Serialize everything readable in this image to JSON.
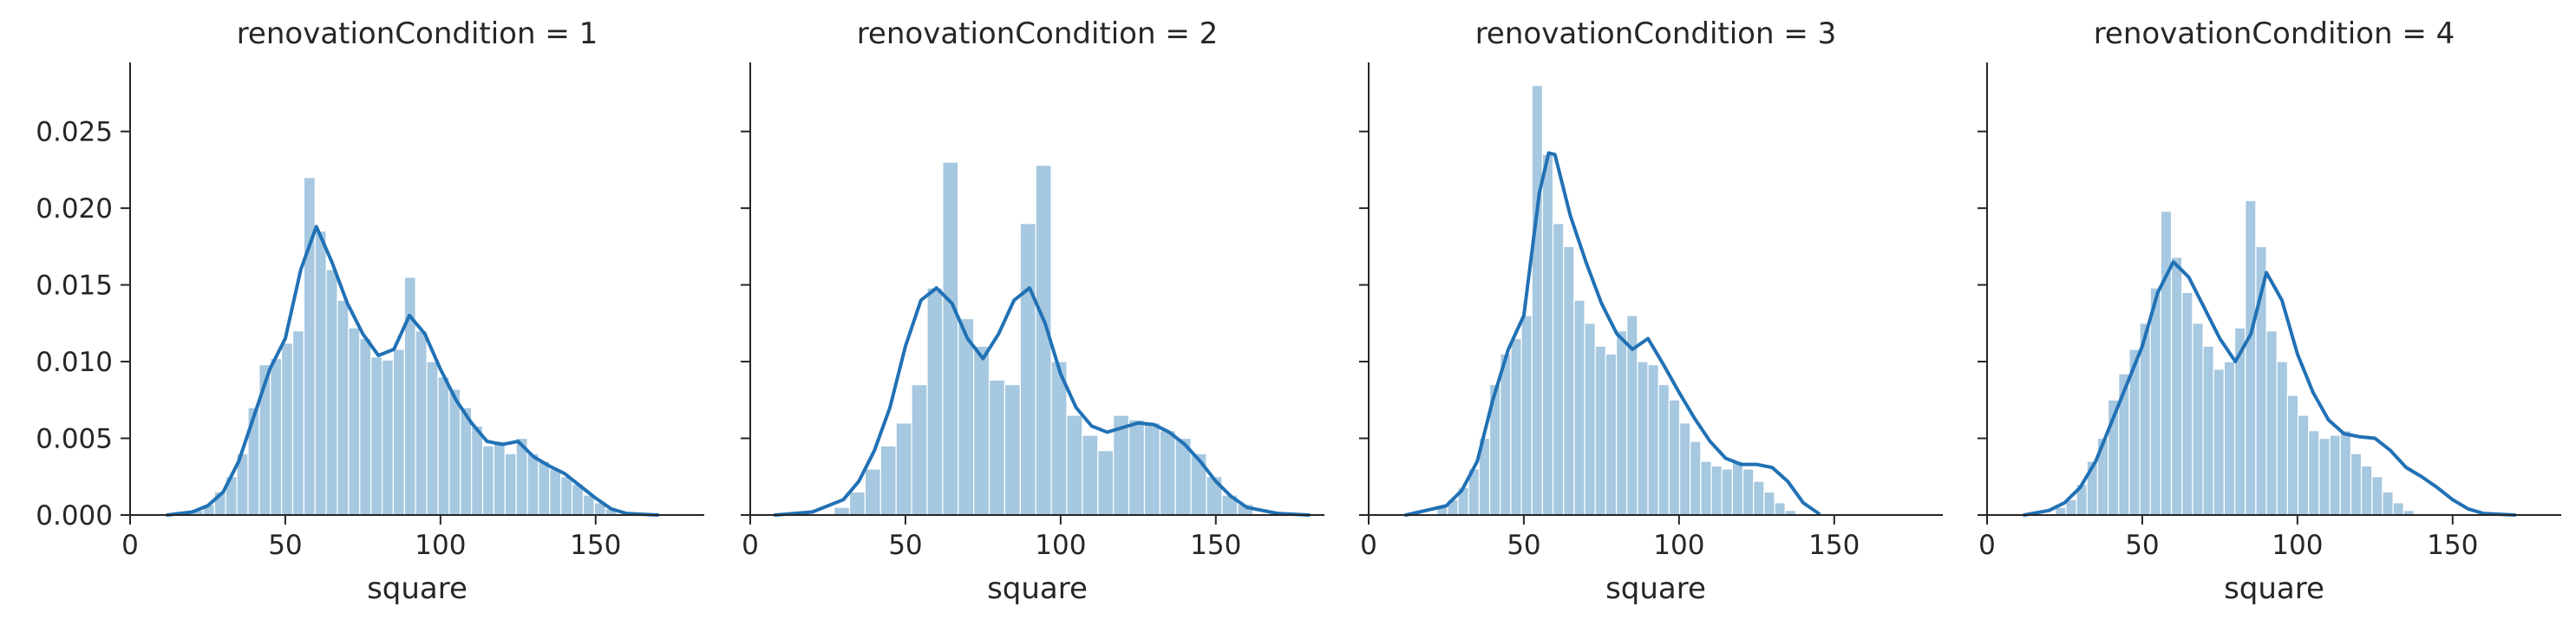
{
  "chart_data": [
    {
      "type": "histogram",
      "title": "renovationCondition = 1",
      "xlabel": "square",
      "ylabel": "",
      "xlim": [
        0,
        185
      ],
      "ylim": [
        0,
        0.0295
      ],
      "x_ticks": [
        0,
        50,
        100,
        150
      ],
      "y_ticks": [
        0.0,
        0.005,
        0.01,
        0.015,
        0.02,
        0.025
      ],
      "y_tick_labels": [
        "0.000",
        "0.005",
        "0.010",
        "0.015",
        "0.020",
        "0.025"
      ],
      "y_tick_labels_visible": true,
      "hist": {
        "bin_start": 20,
        "bin_width": 3.6,
        "values": [
          0.0003,
          0.0007,
          0.0015,
          0.0025,
          0.004,
          0.007,
          0.0098,
          0.0102,
          0.0112,
          0.012,
          0.022,
          0.0185,
          0.016,
          0.014,
          0.0122,
          0.0115,
          0.0103,
          0.0101,
          0.0108,
          0.0155,
          0.012,
          0.01,
          0.009,
          0.0082,
          0.007,
          0.0058,
          0.0045,
          0.0048,
          0.004,
          0.005,
          0.004,
          0.0035,
          0.003,
          0.0025,
          0.002,
          0.0013,
          0.0008,
          0.0004
        ]
      },
      "kde": {
        "x": [
          12,
          20,
          25,
          30,
          35,
          40,
          45,
          50,
          55,
          60,
          65,
          70,
          75,
          80,
          85,
          90,
          95,
          100,
          105,
          110,
          115,
          120,
          125,
          130,
          135,
          140,
          145,
          150,
          155,
          160,
          170
        ],
        "y": [
          0.0,
          0.0002,
          0.0006,
          0.0015,
          0.0035,
          0.0065,
          0.0095,
          0.0115,
          0.016,
          0.0188,
          0.0165,
          0.0138,
          0.0118,
          0.0104,
          0.0108,
          0.013,
          0.0118,
          0.0095,
          0.0075,
          0.006,
          0.0048,
          0.0046,
          0.0048,
          0.0038,
          0.0032,
          0.0027,
          0.0019,
          0.0011,
          0.0004,
          0.0001,
          0.0
        ]
      }
    },
    {
      "type": "histogram",
      "title": "renovationCondition = 2",
      "xlabel": "square",
      "ylabel": "",
      "xlim": [
        0,
        185
      ],
      "ylim": [
        0,
        0.0295
      ],
      "x_ticks": [
        0,
        50,
        100,
        150
      ],
      "y_ticks": [
        0.0,
        0.005,
        0.01,
        0.015,
        0.02,
        0.025
      ],
      "y_tick_labels_visible": false,
      "hist": {
        "bin_start": 27,
        "bin_width": 5,
        "values": [
          0.0005,
          0.0015,
          0.003,
          0.0045,
          0.006,
          0.0085,
          0.0148,
          0.023,
          0.0128,
          0.011,
          0.0088,
          0.0085,
          0.019,
          0.0228,
          0.01,
          0.0065,
          0.0052,
          0.0042,
          0.0065,
          0.0062,
          0.006,
          0.0055,
          0.005,
          0.004,
          0.0025,
          0.0013,
          0.0007
        ]
      },
      "kde": {
        "x": [
          8,
          20,
          30,
          35,
          40,
          45,
          50,
          55,
          60,
          65,
          70,
          75,
          80,
          85,
          90,
          95,
          100,
          105,
          110,
          115,
          120,
          125,
          130,
          135,
          140,
          145,
          150,
          155,
          160,
          170,
          180
        ],
        "y": [
          0.0,
          0.0002,
          0.001,
          0.0022,
          0.0042,
          0.007,
          0.011,
          0.014,
          0.0148,
          0.0138,
          0.0115,
          0.0102,
          0.0118,
          0.014,
          0.0148,
          0.0125,
          0.0092,
          0.007,
          0.0058,
          0.0054,
          0.0057,
          0.006,
          0.0059,
          0.0054,
          0.0046,
          0.0035,
          0.0022,
          0.0012,
          0.0005,
          0.0001,
          0.0
        ]
      }
    },
    {
      "type": "histogram",
      "title": "renovationCondition = 3",
      "xlabel": "square",
      "ylabel": "",
      "xlim": [
        0,
        185
      ],
      "ylim": [
        0,
        0.0295
      ],
      "x_ticks": [
        0,
        50,
        100,
        150
      ],
      "y_ticks": [
        0.0,
        0.005,
        0.01,
        0.015,
        0.02,
        0.025
      ],
      "y_tick_labels_visible": false,
      "hist": {
        "bin_start": 22,
        "bin_width": 3.4,
        "values": [
          0.0005,
          0.001,
          0.0018,
          0.003,
          0.005,
          0.0085,
          0.0105,
          0.0115,
          0.013,
          0.028,
          0.0235,
          0.019,
          0.0175,
          0.014,
          0.0125,
          0.011,
          0.0105,
          0.012,
          0.013,
          0.01,
          0.0098,
          0.0085,
          0.0075,
          0.006,
          0.0048,
          0.0035,
          0.0032,
          0.003,
          0.0035,
          0.003,
          0.0022,
          0.0015,
          0.0008,
          0.0003
        ]
      },
      "kde": {
        "x": [
          12,
          25,
          30,
          35,
          40,
          45,
          50,
          55,
          58,
          60,
          65,
          70,
          75,
          80,
          85,
          90,
          95,
          100,
          105,
          110,
          115,
          120,
          125,
          130,
          135,
          140,
          145
        ],
        "y": [
          0.0,
          0.0006,
          0.0016,
          0.0035,
          0.0075,
          0.0108,
          0.013,
          0.021,
          0.0236,
          0.0235,
          0.0195,
          0.0165,
          0.0138,
          0.0118,
          0.0108,
          0.0115,
          0.0098,
          0.008,
          0.0063,
          0.0048,
          0.0037,
          0.0033,
          0.0033,
          0.0031,
          0.0022,
          0.0008,
          0.0001
        ]
      }
    },
    {
      "type": "histogram",
      "title": "renovationCondition = 4",
      "xlabel": "square",
      "ylabel": "",
      "xlim": [
        0,
        185
      ],
      "ylim": [
        0,
        0.0295
      ],
      "x_ticks": [
        0,
        50,
        100,
        150
      ],
      "y_ticks": [
        0.0,
        0.005,
        0.01,
        0.015,
        0.02,
        0.025
      ],
      "y_tick_labels_visible": false,
      "hist": {
        "bin_start": 22,
        "bin_width": 3.4,
        "values": [
          0.0005,
          0.001,
          0.002,
          0.0035,
          0.005,
          0.0075,
          0.0092,
          0.0108,
          0.0125,
          0.0148,
          0.0198,
          0.0168,
          0.0145,
          0.0125,
          0.011,
          0.0095,
          0.01,
          0.0122,
          0.0205,
          0.0175,
          0.012,
          0.01,
          0.0078,
          0.0065,
          0.0055,
          0.005,
          0.0052,
          0.0055,
          0.004,
          0.0032,
          0.0025,
          0.0015,
          0.0008,
          0.0003
        ]
      },
      "kde": {
        "x": [
          12,
          20,
          25,
          30,
          35,
          40,
          45,
          50,
          55,
          60,
          65,
          70,
          75,
          80,
          85,
          90,
          95,
          100,
          105,
          110,
          115,
          120,
          125,
          130,
          135,
          140,
          145,
          150,
          155,
          160,
          170
        ],
        "y": [
          0.0,
          0.0003,
          0.0008,
          0.0018,
          0.0035,
          0.006,
          0.0085,
          0.011,
          0.0145,
          0.0165,
          0.0155,
          0.0135,
          0.0115,
          0.01,
          0.0118,
          0.0158,
          0.014,
          0.0105,
          0.008,
          0.0062,
          0.0053,
          0.0051,
          0.005,
          0.0042,
          0.0031,
          0.0025,
          0.0018,
          0.001,
          0.0004,
          0.0001,
          0.0
        ]
      }
    }
  ]
}
